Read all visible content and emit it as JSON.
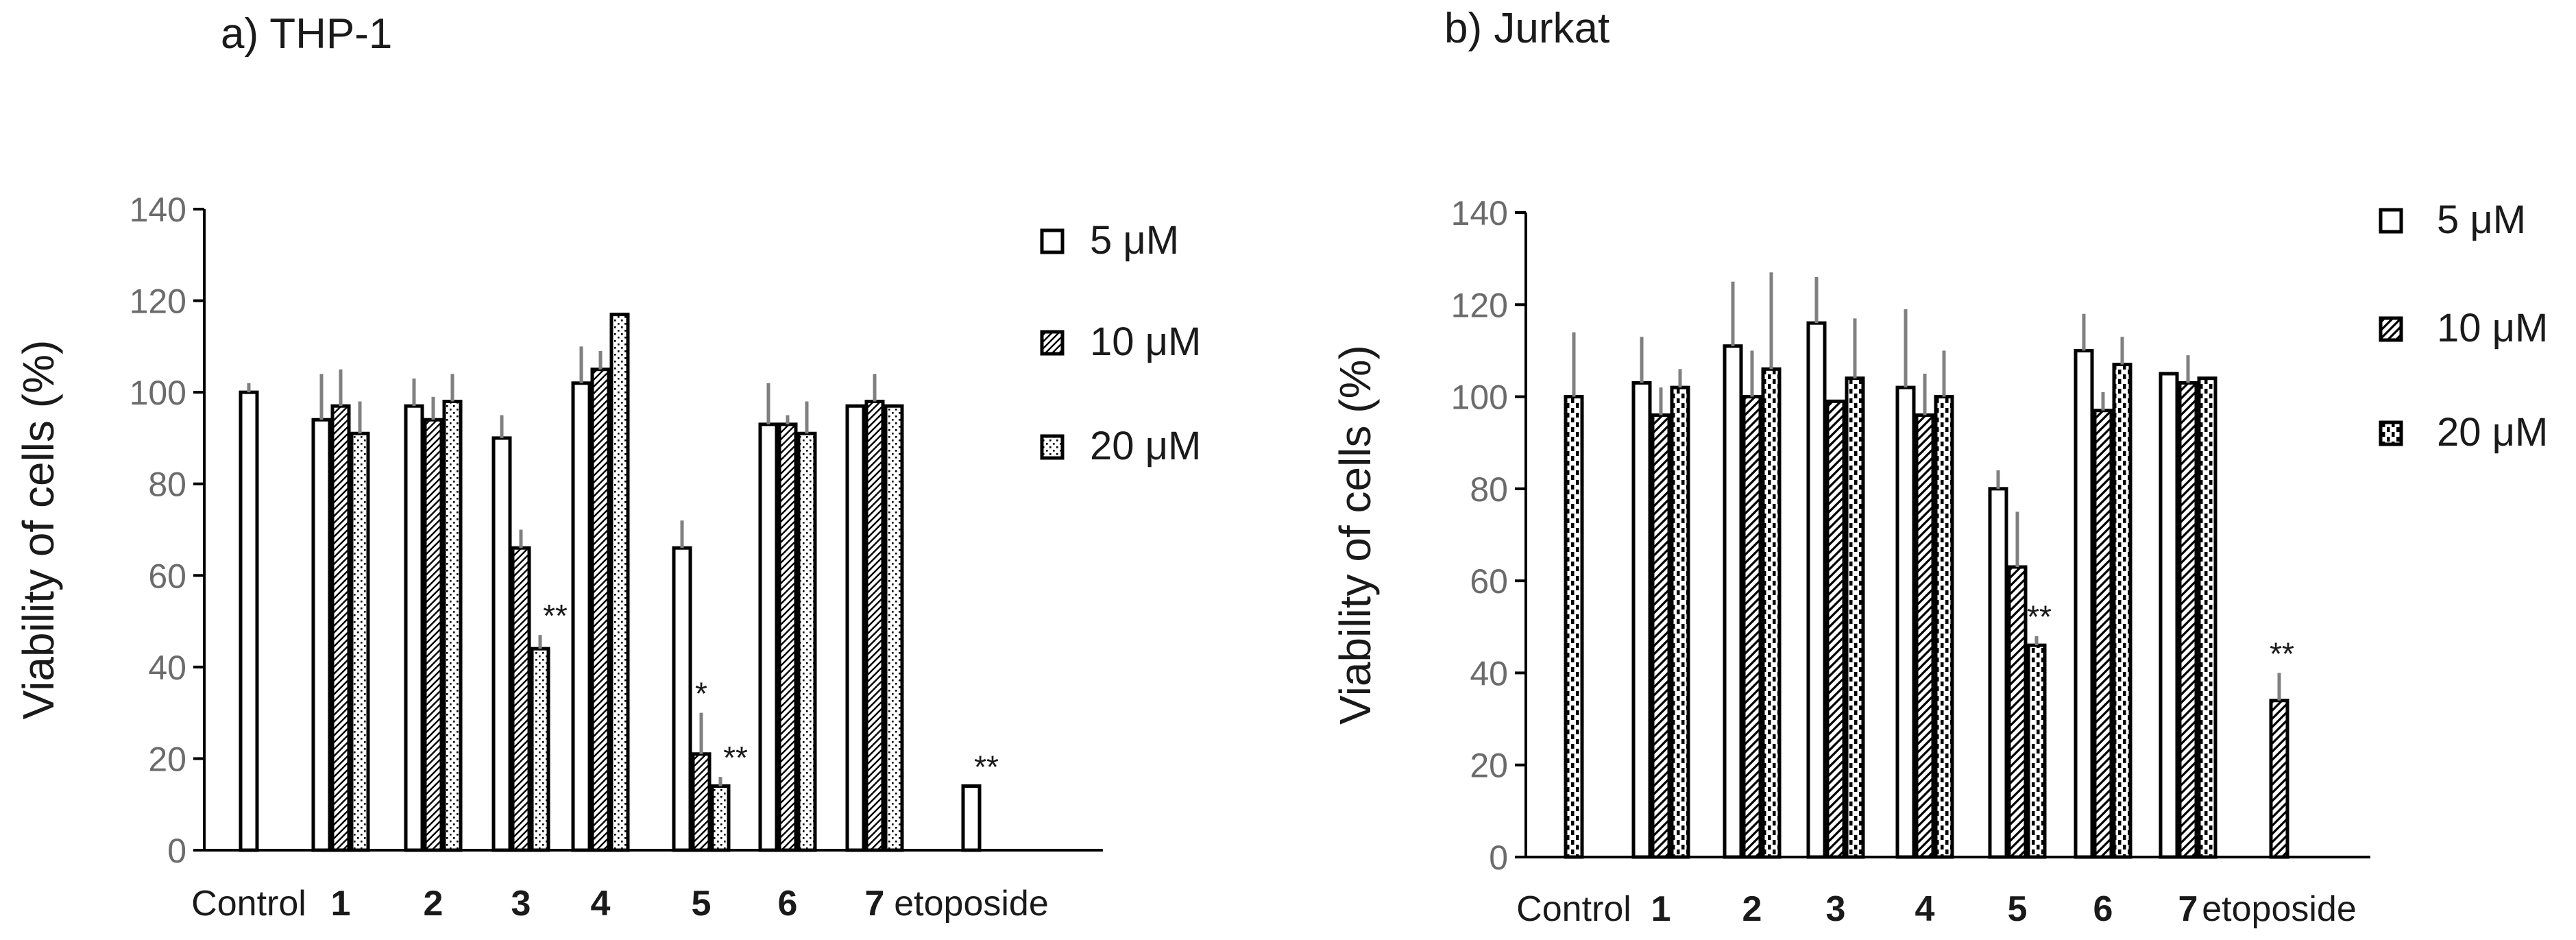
{
  "chart_data": [
    {
      "panel_title": "a) THP-1",
      "type": "bar",
      "ylabel": "Viability of cells (%)",
      "xlabel": "",
      "ylim": [
        0,
        140
      ],
      "yticks": [
        0,
        20,
        40,
        60,
        80,
        100,
        120,
        140
      ],
      "legend": [
        "5 μM",
        "10 μM",
        "20 μM"
      ],
      "legend_position": "top-right",
      "groups": [
        {
          "label": "Control",
          "bold": false,
          "bars": [
            {
              "series": "control",
              "value": 100,
              "err": 2
            }
          ]
        },
        {
          "label": "1",
          "bold": true,
          "bars": [
            {
              "series": 0,
              "value": 94,
              "err": 10
            },
            {
              "series": 1,
              "value": 97,
              "err": 8
            },
            {
              "series": 2,
              "value": 91,
              "err": 7
            }
          ]
        },
        {
          "label": "2",
          "bold": true,
          "bars": [
            {
              "series": 0,
              "value": 97,
              "err": 6
            },
            {
              "series": 1,
              "value": 94,
              "err": 5
            },
            {
              "series": 2,
              "value": 98,
              "err": 6
            }
          ]
        },
        {
          "label": "3",
          "bold": true,
          "bars": [
            {
              "series": 0,
              "value": 90,
              "err": 5
            },
            {
              "series": 1,
              "value": 66,
              "err": 4
            },
            {
              "series": 2,
              "value": 44,
              "err": 3,
              "annotation": "**"
            }
          ]
        },
        {
          "label": "4",
          "bold": true,
          "bars": [
            {
              "series": 0,
              "value": 102,
              "err": 8
            },
            {
              "series": 1,
              "value": 105,
              "err": 4
            },
            {
              "series": 2,
              "value": 117,
              "err": 0
            }
          ]
        },
        {
          "label": "5",
          "bold": true,
          "bars": [
            {
              "series": 0,
              "value": 66,
              "err": 6
            },
            {
              "series": 1,
              "value": 21,
              "err": 9,
              "annotation": "*"
            },
            {
              "series": 2,
              "value": 14,
              "err": 2,
              "annotation": "**"
            }
          ]
        },
        {
          "label": "6",
          "bold": true,
          "bars": [
            {
              "series": 0,
              "value": 93,
              "err": 9
            },
            {
              "series": 1,
              "value": 93,
              "err": 2
            },
            {
              "series": 2,
              "value": 91,
              "err": 7
            }
          ]
        },
        {
          "label": "7",
          "bold": true,
          "bars": [
            {
              "series": 0,
              "value": 97,
              "err": 0
            },
            {
              "series": 1,
              "value": 98,
              "err": 6
            },
            {
              "series": 2,
              "value": 97,
              "err": 0
            }
          ]
        },
        {
          "label": "etoposide",
          "bold": false,
          "bars": [
            {
              "series": "etoposide",
              "value": 14,
              "err": 0,
              "annotation": "**"
            }
          ]
        }
      ]
    },
    {
      "panel_title": "b) Jurkat",
      "type": "bar",
      "ylabel": "Viability of cells (%)",
      "xlabel": "",
      "ylim": [
        0,
        140
      ],
      "yticks": [
        0,
        20,
        40,
        60,
        80,
        100,
        120,
        140
      ],
      "legend": [
        "5 μM",
        "10 μM",
        "20 μM"
      ],
      "legend_position": "top-right",
      "groups": [
        {
          "label": "Control",
          "bold": false,
          "bars": [
            {
              "series": "control",
              "value": 100,
              "err": 14
            }
          ]
        },
        {
          "label": "1",
          "bold": true,
          "bars": [
            {
              "series": 0,
              "value": 103,
              "err": 10
            },
            {
              "series": 1,
              "value": 96,
              "err": 6
            },
            {
              "series": 2,
              "value": 102,
              "err": 4
            }
          ]
        },
        {
          "label": "2",
          "bold": true,
          "bars": [
            {
              "series": 0,
              "value": 111,
              "err": 14
            },
            {
              "series": 1,
              "value": 100,
              "err": 10
            },
            {
              "series": 2,
              "value": 106,
              "err": 21
            }
          ]
        },
        {
          "label": "3",
          "bold": true,
          "bars": [
            {
              "series": 0,
              "value": 116,
              "err": 10
            },
            {
              "series": 1,
              "value": 99,
              "err": 0
            },
            {
              "series": 2,
              "value": 104,
              "err": 13
            }
          ]
        },
        {
          "label": "4",
          "bold": true,
          "bars": [
            {
              "series": 0,
              "value": 102,
              "err": 17
            },
            {
              "series": 1,
              "value": 96,
              "err": 9
            },
            {
              "series": 2,
              "value": 100,
              "err": 10
            }
          ]
        },
        {
          "label": "5",
          "bold": true,
          "bars": [
            {
              "series": 0,
              "value": 80,
              "err": 4
            },
            {
              "series": 1,
              "value": 63,
              "err": 12
            },
            {
              "series": 2,
              "value": 46,
              "err": 2,
              "annotation": "**"
            }
          ]
        },
        {
          "label": "6",
          "bold": true,
          "bars": [
            {
              "series": 0,
              "value": 110,
              "err": 8
            },
            {
              "series": 1,
              "value": 97,
              "err": 4
            },
            {
              "series": 2,
              "value": 107,
              "err": 6
            }
          ]
        },
        {
          "label": "7",
          "bold": true,
          "bars": [
            {
              "series": 0,
              "value": 105,
              "err": 0
            },
            {
              "series": 1,
              "value": 103,
              "err": 6
            },
            {
              "series": 2,
              "value": 104,
              "err": 0
            }
          ]
        },
        {
          "label": "etoposide",
          "bold": false,
          "bars": [
            {
              "series": "etoposide",
              "value": 34,
              "err": 6,
              "annotation": "**"
            }
          ]
        }
      ]
    }
  ]
}
